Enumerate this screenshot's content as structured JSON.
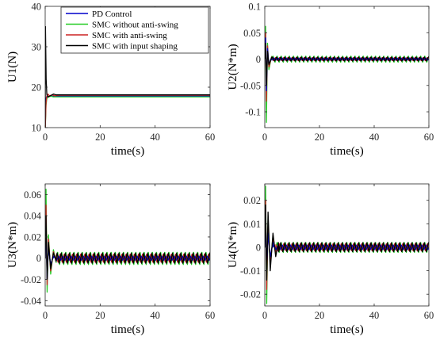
{
  "chart_data": [
    {
      "type": "line",
      "ylabel": "U1(N)",
      "xlabel": "time(s)",
      "xlim": [
        0,
        60
      ],
      "ylim": [
        10,
        40
      ],
      "xticks": [
        0,
        20,
        40,
        60
      ],
      "yticks": [
        10,
        20,
        30,
        40
      ],
      "series": [
        {
          "name": "PD Control",
          "color": "#0000cc",
          "x": [
            0,
            0.05,
            0.2,
            0.3,
            0.5,
            1,
            3,
            10,
            60
          ],
          "y": [
            10,
            10,
            16,
            17.3,
            17.6,
            17.7,
            17.8,
            17.8,
            17.8
          ]
        },
        {
          "name": "SMC without anti-swing",
          "color": "#22cc22",
          "x": [
            0,
            0.05,
            0.3,
            0.6,
            1,
            2,
            3,
            6,
            10,
            60
          ],
          "y": [
            10,
            10,
            15.5,
            17.2,
            17.5,
            17.8,
            17.6,
            17.6,
            17.6,
            17.6
          ]
        },
        {
          "name": "SMC with anti-swing",
          "color": "#cc2222",
          "x": [
            0,
            0.05,
            0.3,
            0.6,
            1,
            1.5,
            2.5,
            3.5,
            5,
            8,
            60
          ],
          "y": [
            10,
            10,
            16,
            17.8,
            18.3,
            17.9,
            18.1,
            17.9,
            18,
            18,
            18
          ]
        },
        {
          "name": "SMC with input shaping",
          "color": "#000000",
          "x": [
            0,
            0.1,
            0.35,
            0.6,
            1,
            2,
            3,
            4,
            6,
            10,
            60
          ],
          "y": [
            10,
            35,
            22,
            18.2,
            17.6,
            17.9,
            18.3,
            18.1,
            18.1,
            18.1,
            18.1
          ]
        }
      ]
    },
    {
      "type": "line",
      "ylabel": "U2(N*m)",
      "xlabel": "time(s)",
      "xlim": [
        0,
        60
      ],
      "ylim": [
        -0.13,
        0.1
      ],
      "xticks": [
        0,
        20,
        40,
        60
      ],
      "yticks": [
        -0.1,
        -0.05,
        0,
        0.05,
        0.1
      ],
      "ytick_labels": [
        "-0.1",
        "-0.05",
        "0",
        "0.05",
        "0.1"
      ],
      "series": [
        {
          "name": "SMC without anti-swing",
          "color": "#22cc22",
          "x": [
            0,
            0.3,
            0.6,
            1,
            1.5,
            2.5
          ],
          "y": [
            0,
            0.062,
            -0.12,
            0.03,
            -0.02,
            0.005
          ],
          "osc_amp": 0.006
        },
        {
          "name": "SMC with anti-swing",
          "color": "#cc2222",
          "x": [
            0,
            0.3,
            0.6,
            1,
            1.5,
            2.5
          ],
          "y": [
            0,
            0.05,
            -0.08,
            0.025,
            -0.015,
            0.004
          ],
          "osc_amp": 0.003
        },
        {
          "name": "PD Control",
          "color": "#0000cc",
          "x": [
            0,
            0.3,
            0.6,
            1,
            1.5,
            2.5
          ],
          "y": [
            0,
            0.04,
            -0.06,
            0.02,
            -0.01,
            0.003
          ],
          "osc_amp": 0.002
        },
        {
          "name": "SMC with input shaping",
          "color": "#000000",
          "x": [
            0,
            0.3,
            0.6,
            1,
            1.5,
            2.5
          ],
          "y": [
            0,
            0.03,
            -0.05,
            0.015,
            -0.01,
            0.003
          ],
          "osc_amp": 0.004
        }
      ]
    },
    {
      "type": "line",
      "ylabel": "U3(N*m)",
      "xlabel": "time(s)",
      "xlim": [
        0,
        60
      ],
      "ylim": [
        -0.045,
        0.07
      ],
      "xticks": [
        0,
        20,
        40,
        60
      ],
      "yticks": [
        -0.04,
        -0.02,
        0,
        0.02,
        0.04,
        0.06
      ],
      "ytick_labels": [
        "-0.04",
        "-0.02",
        "0",
        "0.02",
        "0.04",
        "0.06"
      ],
      "series": [
        {
          "name": "SMC without anti-swing",
          "color": "#22cc22",
          "x": [
            0,
            0.3,
            0.7,
            1.2,
            2,
            3,
            4
          ],
          "y": [
            0,
            0.065,
            -0.032,
            0.022,
            -0.015,
            0.008,
            -0.004
          ],
          "osc_amp": 0.006
        },
        {
          "name": "SMC with anti-swing",
          "color": "#cc2222",
          "x": [
            0,
            0.3,
            0.7,
            1.2,
            2,
            3,
            4
          ],
          "y": [
            0,
            0.05,
            -0.025,
            0.018,
            -0.012,
            0.006,
            -0.003
          ],
          "osc_amp": 0.004
        },
        {
          "name": "PD Control",
          "color": "#0000cc",
          "x": [
            0,
            0.3,
            0.7,
            1.2,
            2,
            3
          ],
          "y": [
            0,
            0.03,
            -0.02,
            0.01,
            -0.006,
            0.002
          ],
          "osc_amp": 0.002
        },
        {
          "name": "SMC with input shaping",
          "color": "#000000",
          "x": [
            0,
            0.3,
            0.7,
            1.2,
            2,
            3,
            4
          ],
          "y": [
            0,
            0.04,
            -0.02,
            0.015,
            -0.01,
            0.005,
            -0.003
          ],
          "osc_amp": 0.005
        }
      ]
    },
    {
      "type": "line",
      "ylabel": "U4(N*m)",
      "xlabel": "time(s)",
      "xlim": [
        0,
        60
      ],
      "ylim": [
        -0.025,
        0.027
      ],
      "xticks": [
        0,
        20,
        40,
        60
      ],
      "yticks": [
        -0.02,
        -0.01,
        0,
        0.01,
        0.02
      ],
      "ytick_labels": [
        "-0.02",
        "-0.01",
        "0",
        "0.01",
        "0.02"
      ],
      "series": [
        {
          "name": "SMC without anti-swing",
          "color": "#22cc22",
          "x": [
            0,
            0.3,
            0.7,
            1.2,
            2,
            3,
            4
          ],
          "y": [
            0,
            0.026,
            -0.024,
            0.012,
            -0.008,
            0.005,
            -0.003
          ],
          "osc_amp": 0.0022
        },
        {
          "name": "SMC with anti-swing",
          "color": "#cc2222",
          "x": [
            0,
            0.3,
            0.7,
            1.2,
            2,
            3,
            4
          ],
          "y": [
            0,
            0.02,
            -0.018,
            0.01,
            -0.007,
            0.004,
            -0.002
          ],
          "osc_amp": 0.0015
        },
        {
          "name": "PD Control",
          "color": "#0000cc",
          "x": [
            0,
            0.3,
            0.7,
            1.2,
            2,
            3
          ],
          "y": [
            0,
            0.012,
            -0.01,
            0.006,
            -0.004,
            0.002
          ],
          "osc_amp": 0.001
        },
        {
          "name": "SMC with input shaping",
          "color": "#000000",
          "x": [
            0,
            0.3,
            0.7,
            1.2,
            2,
            3,
            4,
            5
          ],
          "y": [
            0,
            0.018,
            -0.014,
            0.015,
            -0.01,
            0.006,
            -0.004,
            0.002
          ],
          "osc_amp": 0.002
        }
      ]
    }
  ],
  "legend": {
    "placement": "top-right",
    "entries": [
      {
        "label": "PD Control",
        "color": "#0000cc"
      },
      {
        "label": "SMC without anti-swing",
        "color": "#22cc22"
      },
      {
        "label": "SMC with anti-swing",
        "color": "#cc2222"
      },
      {
        "label": "SMC with input shaping",
        "color": "#000000"
      }
    ]
  }
}
